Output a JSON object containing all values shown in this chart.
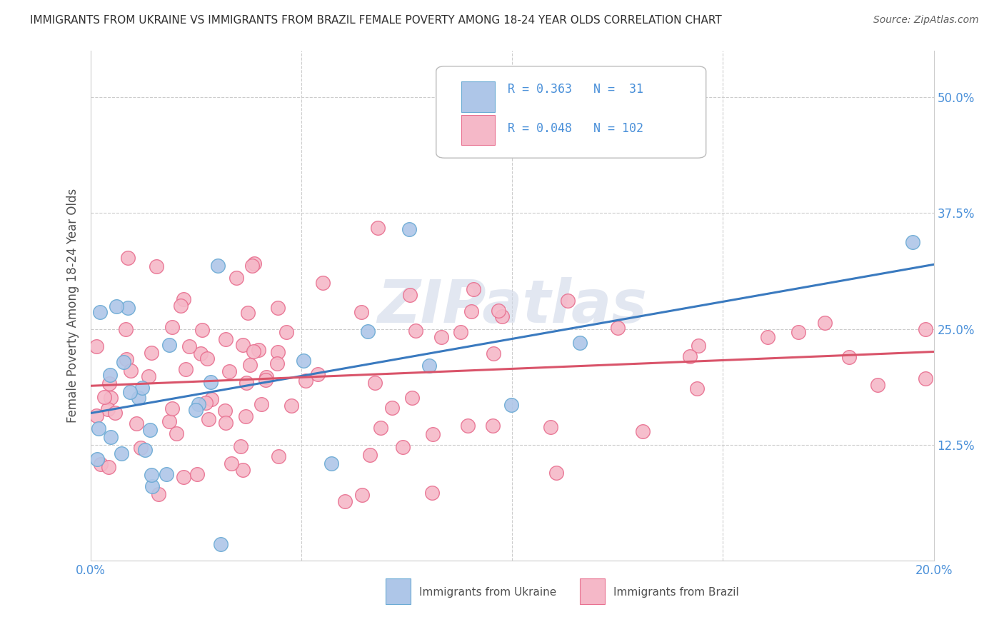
{
  "title": "IMMIGRANTS FROM UKRAINE VS IMMIGRANTS FROM BRAZIL FEMALE POVERTY AMONG 18-24 YEAR OLDS CORRELATION CHART",
  "source": "Source: ZipAtlas.com",
  "ylabel": "Female Poverty Among 18-24 Year Olds",
  "xlim": [
    0.0,
    0.2
  ],
  "ylim": [
    0.0,
    0.55
  ],
  "ukraine_R": 0.363,
  "ukraine_N": 31,
  "brazil_R": 0.048,
  "brazil_N": 102,
  "ukraine_color": "#aec6e8",
  "ukraine_edge": "#6aaad4",
  "brazil_color": "#f5b8c8",
  "brazil_edge": "#e87090",
  "ukraine_line_color": "#3a7abf",
  "brazil_line_color": "#d9546a",
  "background_color": "#ffffff",
  "grid_color": "#cccccc",
  "title_color": "#303030",
  "source_color": "#606060",
  "axis_label_color": "#505050",
  "tick_label_color": "#4a90d9",
  "legend_text_color": "#4a90d9",
  "watermark_color": "#d0d8e8"
}
